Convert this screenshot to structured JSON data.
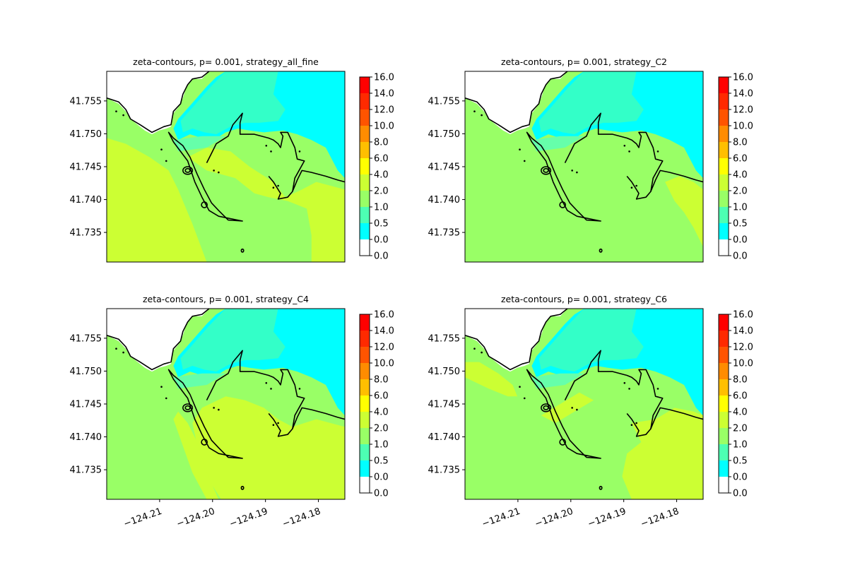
{
  "figure": {
    "background": "#ffffff"
  },
  "colorbar": {
    "ticks": [
      "16.0",
      "14.0",
      "12.0",
      "10.0",
      "8.0",
      "6.0",
      "4.0",
      "2.0",
      "1.0",
      "0.5",
      "0.0",
      "0.0"
    ],
    "bands": [
      "#ff0000",
      "#ff2a00",
      "#ff5400",
      "#ff8c00",
      "#ffbf00",
      "#ffff00",
      "#ccff33",
      "#99ff66",
      "#4dffb3",
      "#00ffff",
      "#ffffff"
    ]
  },
  "colors": {
    "cyan": "#00ffff",
    "aqua": "#33ffc8",
    "teal": "#66ffaa",
    "green": "#99ff66",
    "lime": "#ccff33",
    "land": "#ffffff",
    "coast": "#000000"
  },
  "chart_data": [
    {
      "type": "heatmap",
      "title": "zeta-contours, p= 0.001, strategy_all_fine",
      "xlim": [
        -124.22,
        -124.175
      ],
      "ylim": [
        41.7305,
        41.7595
      ],
      "y_ticks": [
        "41.755",
        "41.750",
        "41.745",
        "41.740",
        "41.735"
      ],
      "y_tick_values": [
        41.755,
        41.75,
        41.745,
        41.74,
        41.735
      ],
      "x_ticks": [],
      "color_levels": [
        0.0,
        0.0,
        0.5,
        1.0,
        2.0,
        4.0,
        6.0,
        8.0,
        10.0,
        12.0,
        14.0,
        16.0
      ]
    },
    {
      "type": "heatmap",
      "title": "zeta-contours, p= 0.001, strategy_C2",
      "xlim": [
        -124.22,
        -124.175
      ],
      "ylim": [
        41.7305,
        41.7595
      ],
      "y_ticks": [
        "41.755",
        "41.750",
        "41.745",
        "41.740",
        "41.735"
      ],
      "y_tick_values": [
        41.755,
        41.75,
        41.745,
        41.74,
        41.735
      ],
      "x_ticks": [],
      "color_levels": [
        0.0,
        0.0,
        0.5,
        1.0,
        2.0,
        4.0,
        6.0,
        8.0,
        10.0,
        12.0,
        14.0,
        16.0
      ]
    },
    {
      "type": "heatmap",
      "title": "zeta-contours, p= 0.001, strategy_C4",
      "xlim": [
        -124.22,
        -124.175
      ],
      "ylim": [
        41.7305,
        41.7595
      ],
      "y_ticks": [
        "41.755",
        "41.750",
        "41.745",
        "41.740",
        "41.735"
      ],
      "y_tick_values": [
        41.755,
        41.75,
        41.745,
        41.74,
        41.735
      ],
      "x_ticks": [
        "−124.21",
        "−124.20",
        "−124.19",
        "−124.18"
      ],
      "x_tick_values": [
        -124.21,
        -124.2,
        -124.19,
        -124.18
      ],
      "color_levels": [
        0.0,
        0.0,
        0.5,
        1.0,
        2.0,
        4.0,
        6.0,
        8.0,
        10.0,
        12.0,
        14.0,
        16.0
      ]
    },
    {
      "type": "heatmap",
      "title": "zeta-contours, p= 0.001, strategy_C6",
      "xlim": [
        -124.22,
        -124.175
      ],
      "ylim": [
        41.7305,
        41.7595
      ],
      "y_ticks": [
        "41.755",
        "41.750",
        "41.745",
        "41.740",
        "41.735"
      ],
      "y_tick_values": [
        41.755,
        41.75,
        41.745,
        41.74,
        41.735
      ],
      "x_ticks": [
        "−124.21",
        "−124.20",
        "−124.19",
        "−124.18"
      ],
      "x_tick_values": [
        -124.21,
        -124.2,
        -124.19,
        -124.18
      ],
      "color_levels": [
        0.0,
        0.0,
        0.5,
        1.0,
        2.0,
        4.0,
        6.0,
        8.0,
        10.0,
        12.0,
        14.0,
        16.0
      ]
    }
  ]
}
